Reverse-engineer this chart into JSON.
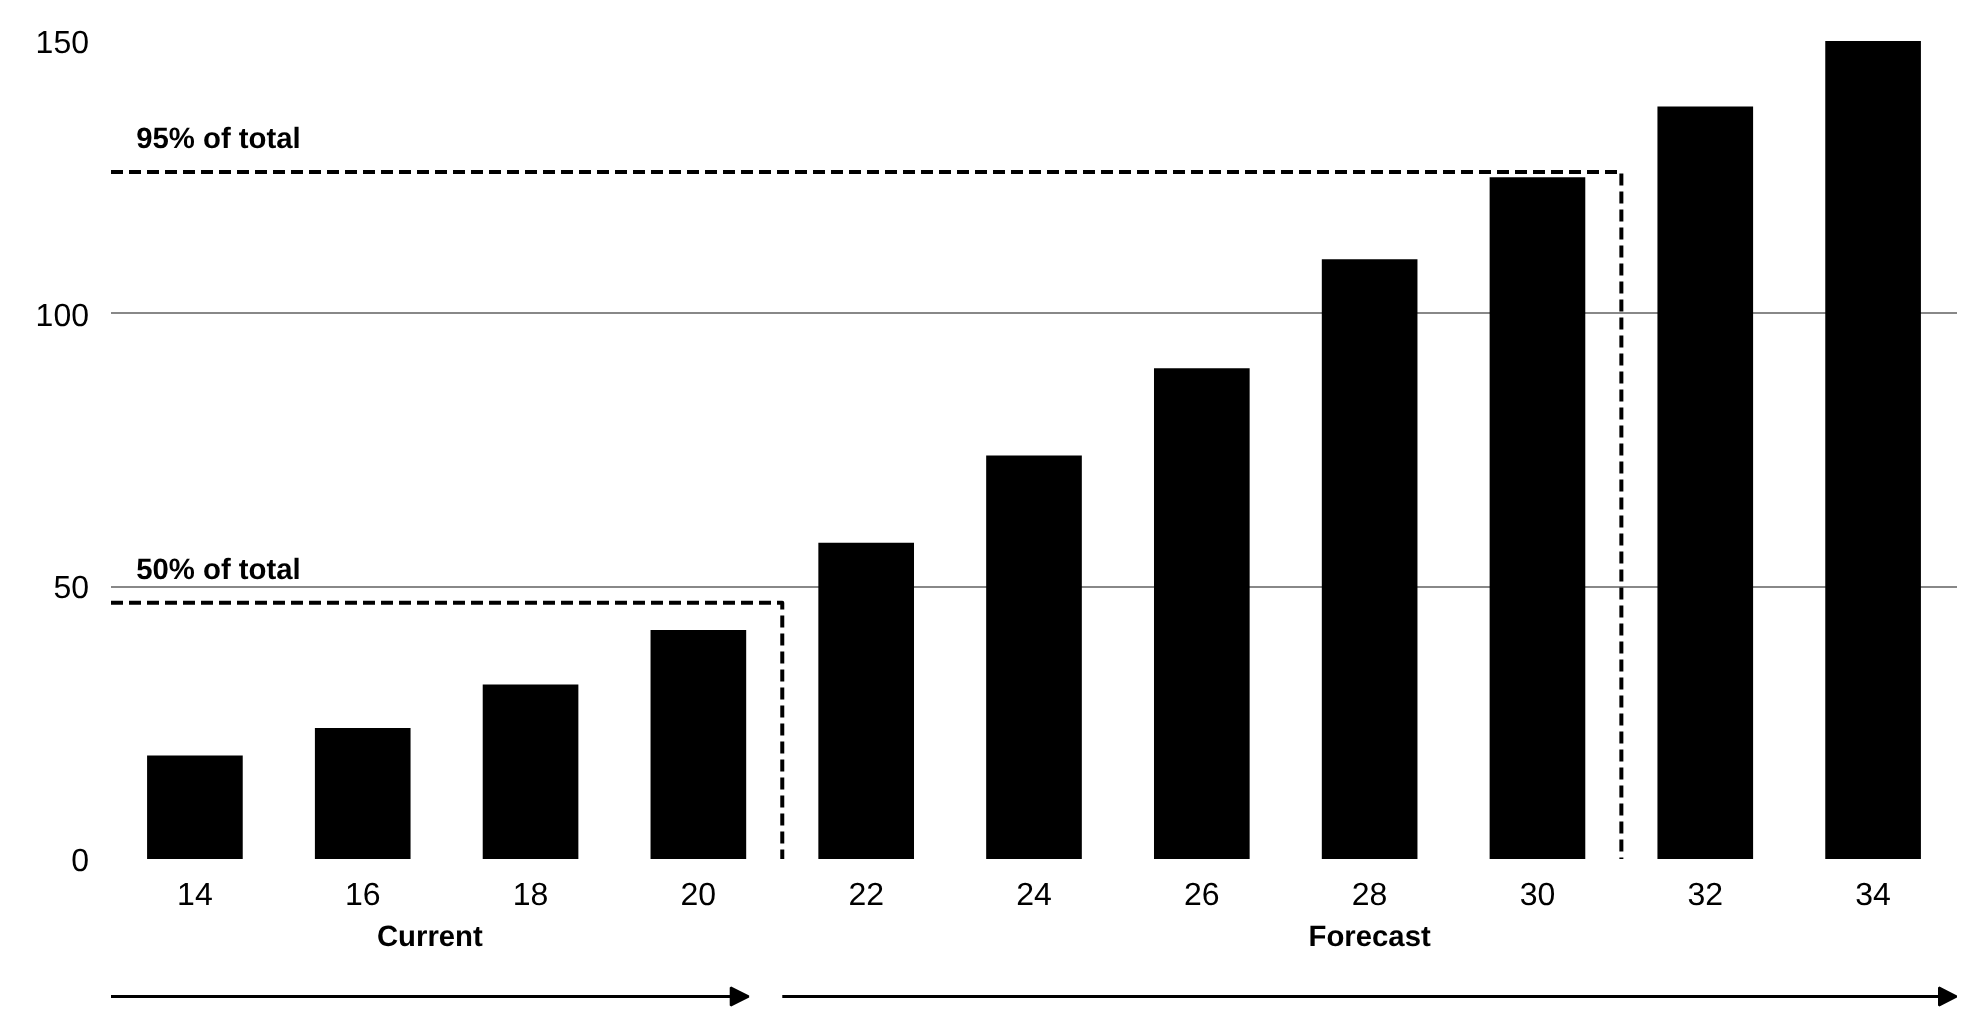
{
  "chart_data": {
    "type": "bar",
    "categories": [
      "14",
      "16",
      "18",
      "20",
      "22",
      "24",
      "26",
      "28",
      "30",
      "32",
      "34"
    ],
    "values": [
      19,
      24,
      32,
      42,
      58,
      74,
      90,
      110,
      125,
      138,
      150
    ],
    "color": "#000000",
    "ylim": [
      0,
      150
    ],
    "yticks": [
      0,
      50,
      100,
      150
    ],
    "grid": "y",
    "ref_lines": [
      {
        "axis": "y",
        "value": 47,
        "label": "50% of total",
        "line_style": "dashed"
      },
      {
        "axis": "y",
        "value": 126,
        "label": "95% of total",
        "line_style": "dashed"
      }
    ],
    "annotations": [
      "Current",
      "Forecast"
    ]
  }
}
